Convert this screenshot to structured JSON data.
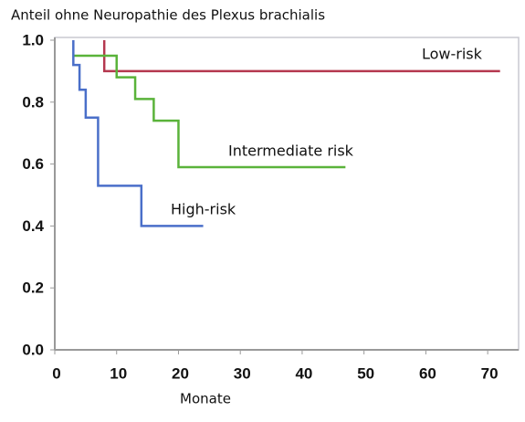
{
  "chart_data": {
    "type": "line",
    "title": "Anteil ohne Neuropathie des Plexus brachialis",
    "xlabel": "Monate",
    "xlim": [
      0,
      75
    ],
    "ylim": [
      0,
      1
    ],
    "xticks": [
      0,
      10,
      20,
      30,
      40,
      50,
      60,
      70
    ],
    "yticks": [
      {
        "value": 0,
        "label": "0.0"
      },
      0.2,
      0.4,
      0.6,
      0.8,
      {
        "value": 1,
        "label": "1.0"
      }
    ],
    "grid": false,
    "series": [
      {
        "name": "Low-risk",
        "color": "#b5384f",
        "x": [
          8,
          8,
          72
        ],
        "values": [
          1.0,
          0.9,
          0.9
        ]
      },
      {
        "name": "Intermediate risk",
        "color": "#5ab33a",
        "x": [
          3,
          10,
          10,
          13,
          13,
          16,
          16,
          20,
          20,
          47
        ],
        "values": [
          0.95,
          0.95,
          0.88,
          0.88,
          0.81,
          0.81,
          0.74,
          0.74,
          0.59,
          0.59
        ]
      },
      {
        "name": "High-risk",
        "color": "#4a6fc9",
        "x": [
          3,
          3,
          4,
          4,
          5,
          5,
          7,
          7,
          14,
          14,
          24
        ],
        "values": [
          1.0,
          0.92,
          0.92,
          0.84,
          0.84,
          0.75,
          0.75,
          0.53,
          0.53,
          0.4,
          0.4
        ]
      }
    ]
  }
}
